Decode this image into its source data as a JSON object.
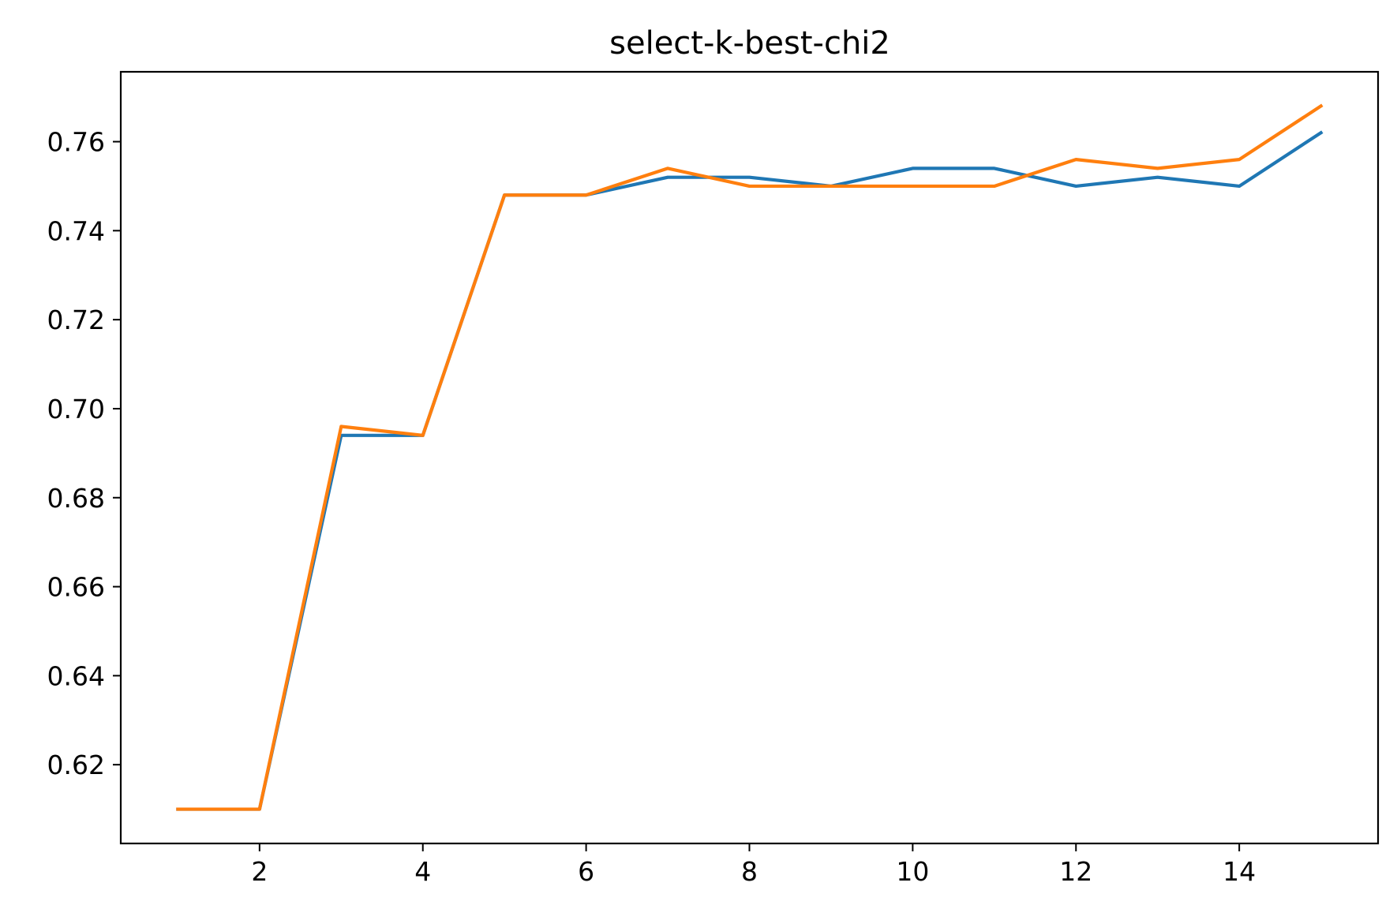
{
  "chart_data": {
    "type": "line",
    "title": "select-k-best-chi2",
    "xlabel": "",
    "ylabel": "",
    "x": [
      1,
      2,
      3,
      4,
      5,
      6,
      7,
      8,
      9,
      10,
      11,
      12,
      13,
      14,
      15
    ],
    "series": [
      {
        "color": "#1f77b4",
        "values": [
          0.61,
          0.61,
          0.694,
          0.694,
          0.748,
          0.748,
          0.752,
          0.752,
          0.75,
          0.754,
          0.754,
          0.75,
          0.752,
          0.75,
          0.762
        ]
      },
      {
        "color": "#ff7f0e",
        "values": [
          0.61,
          0.61,
          0.696,
          0.694,
          0.748,
          0.748,
          0.754,
          0.75,
          0.75,
          0.75,
          0.75,
          0.756,
          0.754,
          0.756,
          0.768
        ]
      }
    ],
    "xlim": [
      0.3,
      15.7
    ],
    "ylim": [
      0.6023,
      0.7757
    ],
    "xticks": [
      2,
      4,
      6,
      8,
      10,
      12,
      14
    ],
    "yticks": [
      0.62,
      0.64,
      0.66,
      0.68,
      0.7,
      0.72,
      0.74,
      0.76
    ],
    "ytick_labels": [
      "0.62",
      "0.64",
      "0.66",
      "0.68",
      "0.70",
      "0.72",
      "0.74",
      "0.76"
    ],
    "grid": false,
    "legend": "none"
  }
}
